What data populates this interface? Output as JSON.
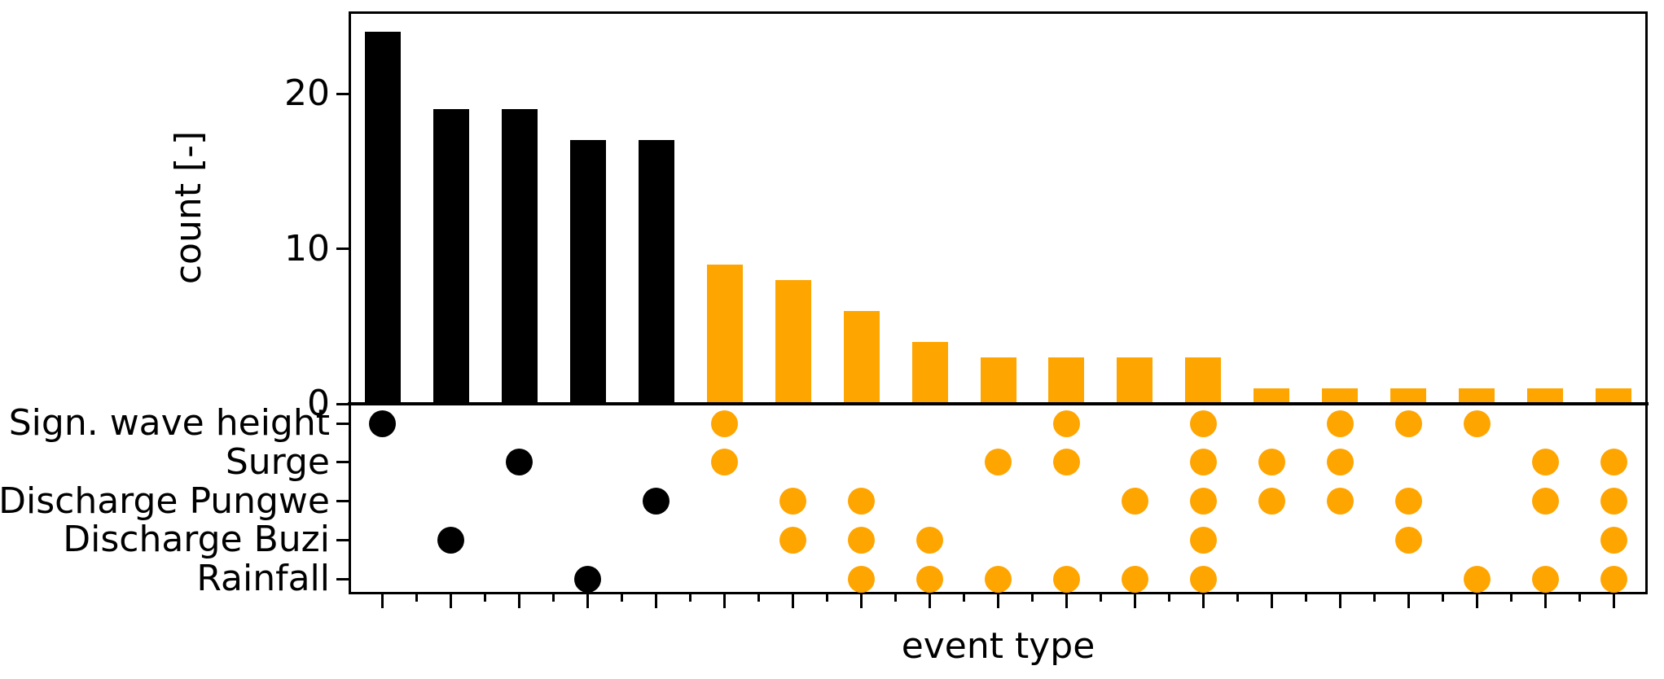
{
  "chart_data": {
    "type": "bar",
    "subtype": "upset-combination-matrix",
    "title": "",
    "xlabel": "event type",
    "ylabel": "count [-]",
    "ylim": [
      0,
      25.3
    ],
    "yticks": [
      0,
      10,
      20
    ],
    "ytick_labels": [
      "0",
      "10",
      "20"
    ],
    "grid": false,
    "legend": "none",
    "rows": [
      "Sign. wave height",
      "Surge",
      "Discharge Pungwe",
      "Discharge Buzi",
      "Rainfall"
    ],
    "colors": {
      "single_driver": "#000000",
      "compound": "#FFA500",
      "axis": "#000000",
      "background": "#FFFFFF"
    },
    "columns": [
      {
        "count": 24,
        "kind": "single_driver",
        "members": [
          "Sign. wave height"
        ]
      },
      {
        "count": 19,
        "kind": "single_driver",
        "members": [
          "Discharge Buzi"
        ]
      },
      {
        "count": 19,
        "kind": "single_driver",
        "members": [
          "Surge"
        ]
      },
      {
        "count": 17,
        "kind": "single_driver",
        "members": [
          "Rainfall"
        ]
      },
      {
        "count": 17,
        "kind": "single_driver",
        "members": [
          "Discharge Pungwe"
        ]
      },
      {
        "count": 9,
        "kind": "compound",
        "members": [
          "Sign. wave height",
          "Surge"
        ]
      },
      {
        "count": 8,
        "kind": "compound",
        "members": [
          "Discharge Pungwe",
          "Discharge Buzi"
        ]
      },
      {
        "count": 6,
        "kind": "compound",
        "members": [
          "Discharge Pungwe",
          "Discharge Buzi",
          "Rainfall"
        ]
      },
      {
        "count": 4,
        "kind": "compound",
        "members": [
          "Discharge Buzi",
          "Rainfall"
        ]
      },
      {
        "count": 3,
        "kind": "compound",
        "members": [
          "Surge",
          "Rainfall"
        ]
      },
      {
        "count": 3,
        "kind": "compound",
        "members": [
          "Sign. wave height",
          "Surge",
          "Rainfall"
        ]
      },
      {
        "count": 3,
        "kind": "compound",
        "members": [
          "Discharge Pungwe",
          "Rainfall"
        ]
      },
      {
        "count": 3,
        "kind": "compound",
        "members": [
          "Sign. wave height",
          "Surge",
          "Discharge Pungwe",
          "Discharge Buzi",
          "Rainfall"
        ]
      },
      {
        "count": 1,
        "kind": "compound",
        "members": [
          "Surge",
          "Discharge Pungwe"
        ]
      },
      {
        "count": 1,
        "kind": "compound",
        "members": [
          "Sign. wave height",
          "Surge",
          "Discharge Pungwe"
        ]
      },
      {
        "count": 1,
        "kind": "compound",
        "members": [
          "Sign. wave height",
          "Discharge Pungwe",
          "Discharge Buzi"
        ]
      },
      {
        "count": 1,
        "kind": "compound",
        "members": [
          "Sign. wave height",
          "Rainfall"
        ]
      },
      {
        "count": 1,
        "kind": "compound",
        "members": [
          "Surge",
          "Discharge Pungwe",
          "Rainfall"
        ]
      },
      {
        "count": 1,
        "kind": "compound",
        "members": [
          "Surge",
          "Discharge Pungwe",
          "Discharge Buzi",
          "Rainfall"
        ]
      }
    ]
  }
}
